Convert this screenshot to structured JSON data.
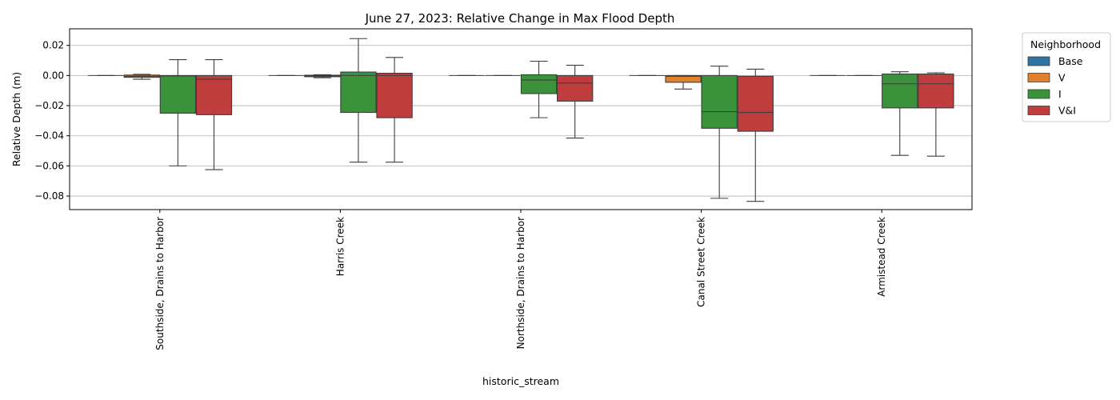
{
  "chart_data": {
    "type": "box",
    "title": "June 27, 2023: Relative Change in Max Flood Depth",
    "xlabel": "historic_stream",
    "ylabel": "Relative Depth (m)",
    "ylim": [
      -0.089,
      0.031
    ],
    "yticks": [
      0.02,
      0.0,
      -0.02,
      -0.04,
      -0.06,
      -0.08
    ],
    "ytick_labels": [
      "0.02",
      "0.00",
      "−0.02",
      "−0.04",
      "−0.06",
      "−0.08"
    ],
    "grid": "horizontal",
    "legend": {
      "title": "Neighborhood",
      "position": "outside-top-right",
      "entries": [
        "Base",
        "V",
        "I",
        "V&I"
      ]
    },
    "colors": [
      "#3274a1",
      "#e1812c",
      "#3a923a",
      "#c03d3e"
    ],
    "categories": [
      "Southside, Drains to Harbor",
      "Harris Creek",
      "Northside, Drains to Harbor",
      "Canal Street Creek",
      "Armistead Creek"
    ],
    "series": [
      {
        "name": "Base",
        "boxes": [
          {
            "whislo": 0,
            "q1": 0,
            "med": 0,
            "q3": 0,
            "whishi": 0
          },
          {
            "whislo": 0,
            "q1": 0,
            "med": 0,
            "q3": 0,
            "whishi": 0
          },
          {
            "whislo": 0,
            "q1": 0,
            "med": 0,
            "q3": 0,
            "whishi": 0
          },
          {
            "whislo": 0,
            "q1": 0,
            "med": 0,
            "q3": 0,
            "whishi": 0
          },
          {
            "whislo": 0,
            "q1": 0,
            "med": 0,
            "q3": 0,
            "whishi": 0
          }
        ]
      },
      {
        "name": "V",
        "boxes": [
          {
            "whislo": -0.0025,
            "q1": -0.0012,
            "med": -0.0005,
            "q3": 0.0003,
            "whishi": 0.0008
          },
          {
            "whislo": -0.0015,
            "q1": -0.0008,
            "med": -0.0003,
            "q3": 0.0002,
            "whishi": 0.0005
          },
          {
            "whislo": 0,
            "q1": 0,
            "med": 0,
            "q3": 0,
            "whishi": 0
          },
          {
            "whislo": -0.009,
            "q1": -0.0045,
            "med": -0.0005,
            "q3": 0.0,
            "whishi": 0.0
          },
          {
            "whislo": 0,
            "q1": 0,
            "med": 0,
            "q3": 0,
            "whishi": 0
          }
        ]
      },
      {
        "name": "I",
        "boxes": [
          {
            "whislo": -0.06,
            "q1": -0.025,
            "med": -0.0003,
            "q3": 0.0,
            "whishi": 0.0105
          },
          {
            "whislo": -0.0575,
            "q1": -0.0245,
            "med": 0.0,
            "q3": 0.0023,
            "whishi": 0.0245
          },
          {
            "whislo": -0.028,
            "q1": -0.012,
            "med": -0.003,
            "q3": 0.0005,
            "whishi": 0.0095
          },
          {
            "whislo": -0.0815,
            "q1": -0.035,
            "med": -0.024,
            "q3": 0.0,
            "whishi": 0.0062
          },
          {
            "whislo": -0.053,
            "q1": -0.0215,
            "med": -0.0055,
            "q3": 0.001,
            "whishi": 0.0025
          }
        ]
      },
      {
        "name": "V&I",
        "boxes": [
          {
            "whislo": -0.0625,
            "q1": -0.026,
            "med": -0.0025,
            "q3": 0.0,
            "whishi": 0.0105
          },
          {
            "whislo": -0.0575,
            "q1": -0.028,
            "med": 0.0,
            "q3": 0.0015,
            "whishi": 0.012
          },
          {
            "whislo": -0.0415,
            "q1": -0.017,
            "med": -0.005,
            "q3": 0.0,
            "whishi": 0.0068
          },
          {
            "whislo": -0.0835,
            "q1": -0.037,
            "med": -0.0245,
            "q3": -0.0005,
            "whishi": 0.0042
          },
          {
            "whislo": -0.0535,
            "q1": -0.0215,
            "med": -0.0055,
            "q3": 0.001,
            "whishi": 0.0018
          }
        ]
      }
    ]
  }
}
